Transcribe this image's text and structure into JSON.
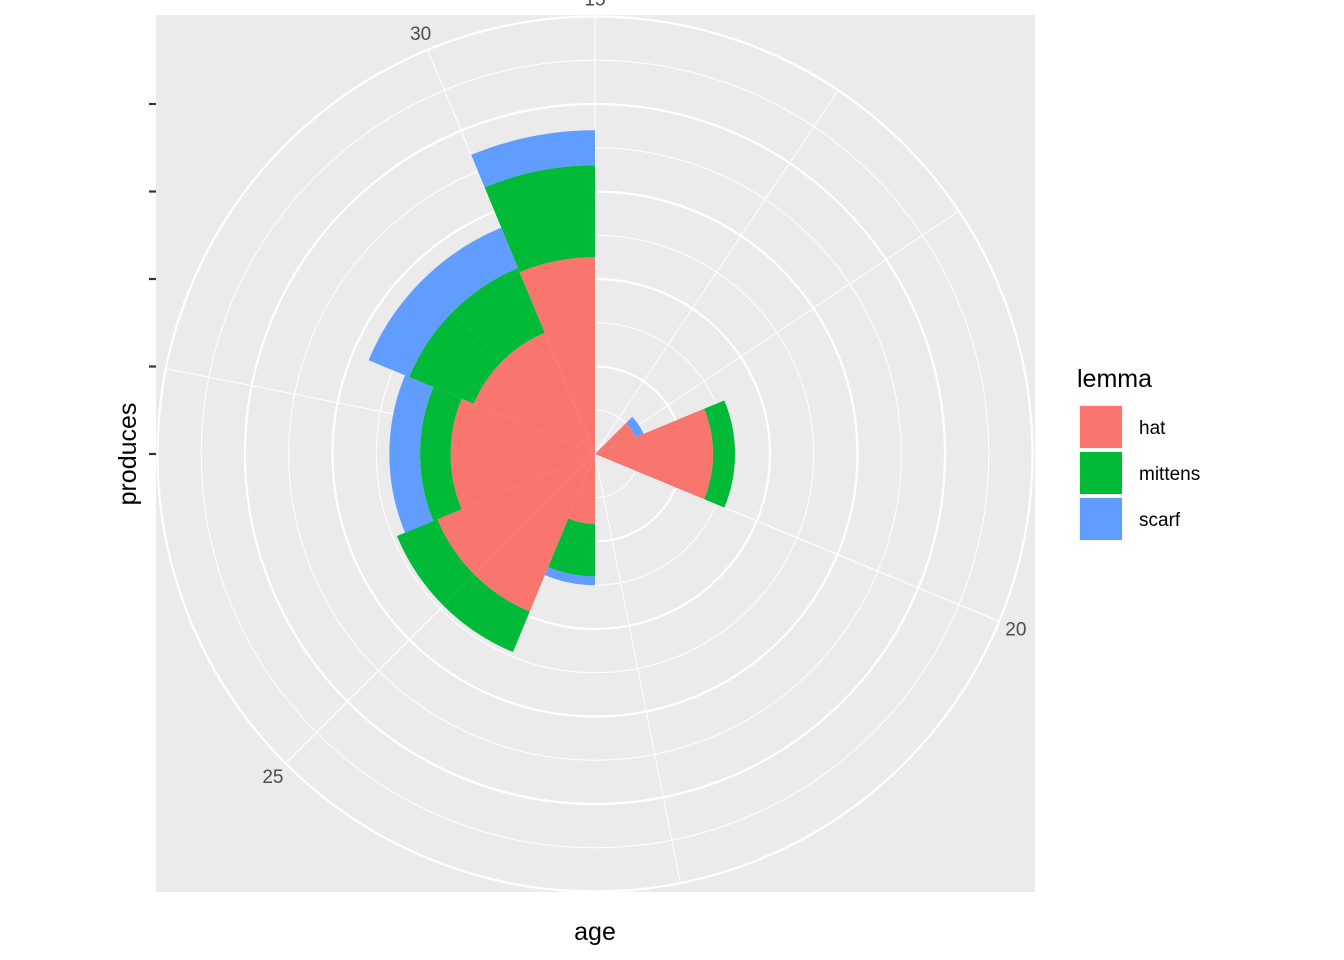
{
  "chart_data": {
    "type": "bar",
    "coord": "polar",
    "position": "stack",
    "xlabel": "age",
    "ylabel": "produces",
    "x": [
      16,
      17,
      18,
      19,
      20,
      21,
      22,
      23,
      24,
      25,
      26,
      27,
      28,
      29,
      30,
      31
    ],
    "x_tick_labels": [
      "15",
      "20",
      "25",
      "30"
    ],
    "x_ticks": [
      15,
      20,
      25,
      30
    ],
    "x_range": [
      15.5,
      31.5
    ],
    "ylim": [
      0,
      4.5
    ],
    "y_ticks": [
      0,
      1,
      2,
      3,
      4
    ],
    "y_tick_labels": [
      "",
      "",
      "",
      "",
      ""
    ],
    "series": [
      {
        "name": "hat",
        "values": [
          0.0,
          0.0,
          0.5,
          1.35,
          1.35,
          0.0,
          0.0,
          0.0,
          0.8,
          1.95,
          1.95,
          1.65,
          1.65,
          1.5,
          1.5,
          2.25
        ]
      },
      {
        "name": "mittens",
        "values": [
          0.0,
          0.0,
          0.0,
          0.25,
          0.25,
          0.0,
          0.0,
          0.0,
          0.6,
          0.5,
          0.5,
          0.35,
          0.35,
          0.8,
          0.8,
          1.05
        ]
      },
      {
        "name": "scarf",
        "values": [
          0.0,
          0.0,
          0.1,
          0.0,
          0.0,
          0.0,
          0.0,
          0.0,
          0.1,
          0.0,
          0.0,
          0.35,
          0.35,
          0.5,
          0.5,
          0.4
        ]
      }
    ],
    "legend": {
      "title": "lemma",
      "position": "right"
    },
    "colors": {
      "hat": "#F8766D",
      "mittens": "#00BA38",
      "scarf": "#619CFF",
      "panel": "#EBEBEB",
      "grid": "#FFFFFF"
    },
    "grid": true
  }
}
